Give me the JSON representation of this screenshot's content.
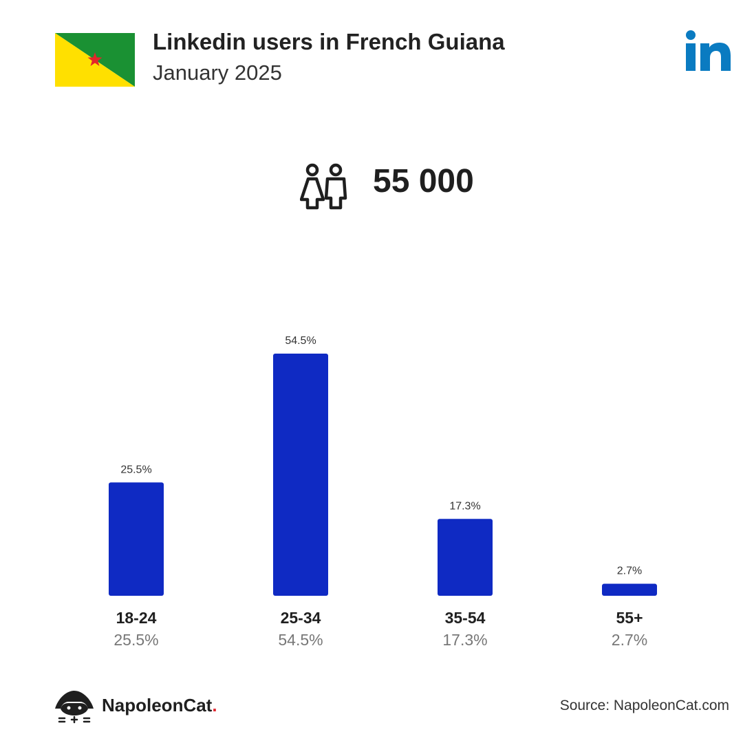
{
  "header": {
    "title": "Linkedin users in French Guiana",
    "subtitle": "January 2025"
  },
  "flag": {
    "colors": {
      "green": "#1a9133",
      "yellow": "#ffe000",
      "star": "#e3262b"
    }
  },
  "logo": {
    "icon": "linkedin-icon",
    "color": "#0a7bc1"
  },
  "summary": {
    "icon": "users-icon",
    "total": "55 000"
  },
  "chart_data": {
    "type": "bar",
    "categories": [
      "18-24",
      "25-34",
      "35-54",
      "55+"
    ],
    "values": [
      25.5,
      54.5,
      17.3,
      2.7
    ],
    "value_labels": [
      "25.5%",
      "54.5%",
      "17.3%",
      "2.7%"
    ],
    "title": "",
    "xlabel": "",
    "ylabel": "",
    "ylim": [
      0,
      54.5
    ],
    "grid": false,
    "bar_color": "#0f2ac3"
  },
  "footer": {
    "brand": "NapoleonCat",
    "brand_dot": ".",
    "source": "Source: NapoleonCat.com"
  }
}
